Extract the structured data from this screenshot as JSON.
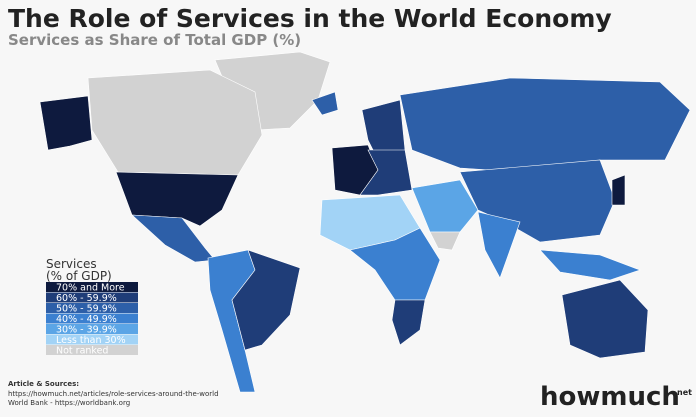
{
  "header": {
    "title": "The Role of Services in the World Economy",
    "subtitle": "Services as Share of Total GDP (%)"
  },
  "legend": {
    "title": [
      "Services",
      "(% of GDP)"
    ],
    "items": [
      {
        "label": "70% and More",
        "color": "#0e1a3e"
      },
      {
        "label": "60% - 59.9%",
        "color": "#1f3d78"
      },
      {
        "label": "50% - 59.9%",
        "color": "#2d5fa8"
      },
      {
        "label": "40% - 49.9%",
        "color": "#3b80d0"
      },
      {
        "label": "30% - 39.9%",
        "color": "#5ba5e6"
      },
      {
        "label": "Less than 30%",
        "color": "#a2d3f6"
      },
      {
        "label": "Not ranked",
        "color": "#d2d2d2"
      }
    ]
  },
  "sources": {
    "heading": "Article & Sources:",
    "lines": [
      "https://howmuch.net/articles/role-services-around-the-world",
      "World Bank - https://worldbank.org"
    ]
  },
  "logo": {
    "text": "howmuch",
    "suffix": ".net"
  }
}
